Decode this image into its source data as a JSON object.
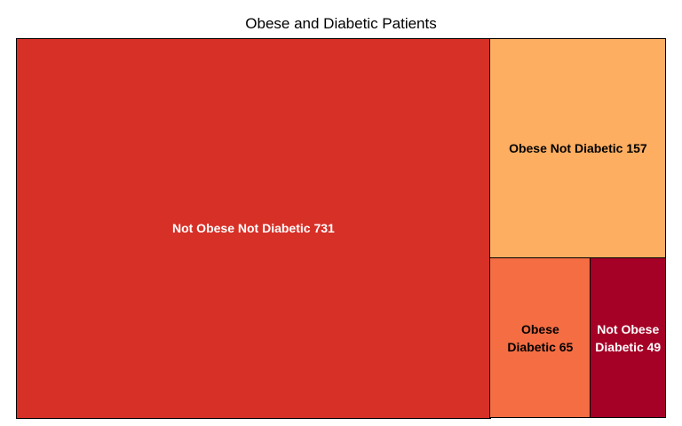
{
  "chart_data": {
    "type": "treemap",
    "title": "Obese and Diabetic Patients",
    "cells": [
      {
        "name": "Not Obese Not Diabetic",
        "value": 731,
        "label": "Not Obese Not Diabetic  731",
        "color": "#d73027",
        "text_color": "#ffffff"
      },
      {
        "name": "Obese Not Diabetic",
        "value": 157,
        "label": "Obese Not Diabetic  157",
        "color": "#fdae61",
        "text_color": "#000000"
      },
      {
        "name": "Obese Diabetic",
        "value": 65,
        "label": "Obese\nDiabetic 65",
        "color": "#f46d43",
        "text_color": "#000000"
      },
      {
        "name": "Not Obese Diabetic",
        "value": 49,
        "label": "Not Obese\nDiabetic 49",
        "color": "#a50026",
        "text_color": "#ffffff"
      }
    ]
  }
}
